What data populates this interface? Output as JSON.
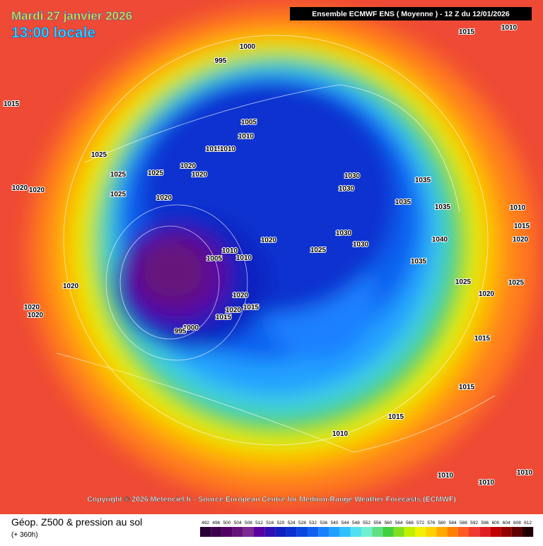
{
  "header": {
    "title": "Mardi 27 janvier 2026",
    "subtitle": "13:00 locale",
    "model": "Ensemble ECMWF ENS  ( Moyenne )  - 12 Z du 12/01/2026"
  },
  "copyright": "Copyright © 2026 Meteociel.fr - Source European Centre for Medium-Range Weather Forecasts (ECMWF)",
  "footer": {
    "label": "Géop. Z500 & pression au sol",
    "lead": "(+ 360h)"
  },
  "colorbar": {
    "values": [
      492,
      496,
      500,
      504,
      508,
      512,
      516,
      520,
      524,
      528,
      532,
      536,
      540,
      544,
      548,
      552,
      556,
      560,
      564,
      568,
      572,
      576,
      580,
      584,
      588,
      592,
      596,
      600,
      604,
      608,
      612
    ],
    "colors": [
      "#2a0038",
      "#3d004f",
      "#520066",
      "#66127a",
      "#7a2a90",
      "#5a00a0",
      "#3010b0",
      "#1020c0",
      "#0a30d0",
      "#0848e0",
      "#1060f0",
      "#1a80ff",
      "#20a0ff",
      "#30c0ff",
      "#50e0f0",
      "#70f0d0",
      "#60e080",
      "#40d040",
      "#80e020",
      "#c0f000",
      "#f0f000",
      "#ffd000",
      "#ffa800",
      "#ff8000",
      "#ff5a20",
      "#f03a30",
      "#e02020",
      "#c00000",
      "#900000",
      "#600000",
      "#200000"
    ]
  },
  "isobars": [
    "1000",
    "995",
    "1015",
    "1010",
    "1005",
    "1010",
    "1015",
    "1010",
    "1025",
    "1025",
    "1025",
    "1020",
    "1020",
    "1020",
    "1020",
    "1025",
    "1015",
    "1020",
    "1030",
    "1030",
    "1030",
    "1035",
    "1035",
    "1035",
    "1020",
    "1025",
    "1030",
    "1035",
    "1040",
    "1005",
    "1010",
    "1010",
    "1020",
    "1015",
    "1015",
    "1020",
    "1020",
    "1000",
    "995",
    "1020",
    "1020",
    "1010",
    "1015",
    "1015",
    "1025",
    "1020",
    "1015",
    "1010",
    "1010",
    "1010",
    "1015",
    "1020",
    "1025",
    "1010"
  ]
}
